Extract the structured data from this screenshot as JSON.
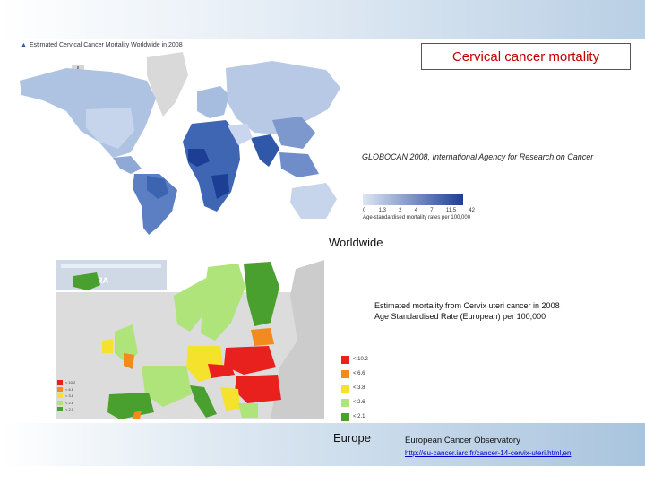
{
  "slide": {
    "title": "Cervical cancer mortality",
    "world": {
      "caption": "Estimated Cervical Cancer Mortality Worldwide in 2008",
      "source": "GLOBOCAN 2008, International Agency for Research on Cancer",
      "scale_ticks": [
        "0",
        "1.3",
        "2",
        "4",
        "7",
        "11.5",
        "42"
      ],
      "scale_label": "Age-standardised mortality rates per 100,000",
      "label": "Worldwide"
    },
    "europe": {
      "logo_text": "ELARA",
      "description_line1": "Estimated mortality from Cervix uteri cancer in 2008 ;",
      "description_line2": "Age Standardised Rate (European) per 100,000",
      "legend": [
        {
          "label": "< 10.2",
          "color": "#e8201e"
        },
        {
          "label": "< 6.6",
          "color": "#f28a1e"
        },
        {
          "label": "< 3.8",
          "color": "#f4e22c"
        },
        {
          "label": "< 2.6",
          "color": "#aee47a"
        },
        {
          "label": "< 2.1",
          "color": "#4aa02e"
        }
      ],
      "label": "Europe",
      "observatory": "European Cancer Observatory",
      "link": "http://eu-cancer.iarc.fr/cancer-14-cervix-uteri.html,en"
    },
    "colors": {
      "title_text": "#c00000",
      "map_dark": "#1c3f95",
      "map_light": "#dde6f4"
    }
  }
}
